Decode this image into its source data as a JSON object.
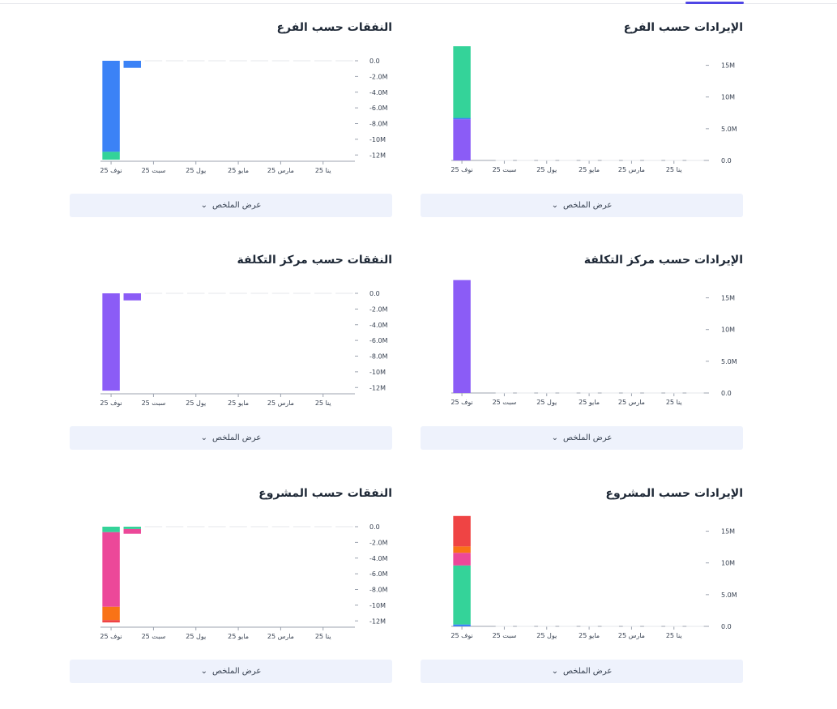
{
  "summary_label": "عرض الملخص",
  "colors": {
    "blue": "#3b82f6",
    "green": "#34d399",
    "purple": "#8b5cf6",
    "pink": "#ec4899",
    "orange": "#f97316",
    "red": "#ef4444",
    "accent": "#4f46e5"
  },
  "chart_data": [
    {
      "id": "revenue-branch",
      "type": "bar",
      "stacked": true,
      "title": "الإيرادات حسب الفرع",
      "categories": [
        "نوف 25",
        "سبت 25",
        "يول 25",
        "مايو 25",
        "مارس 25",
        "ينا 25"
      ],
      "y_ticks": [
        "0.0",
        "5.0M",
        "10M",
        "15M"
      ],
      "ylim": [
        0,
        17500000
      ],
      "x_axis": "reversed",
      "series": [
        {
          "color": "#8b5cf6",
          "values": [
            6500000,
            0,
            0,
            0,
            0,
            0
          ]
        },
        {
          "color": "#3b82f6",
          "values": [
            200000,
            0,
            0,
            0,
            0,
            0
          ]
        },
        {
          "color": "#34d399",
          "values": [
            11300000,
            0,
            0,
            0,
            0,
            0
          ]
        }
      ]
    },
    {
      "id": "expenses-branch",
      "type": "bar",
      "stacked": true,
      "title": "النفقات حسب الفرع",
      "categories": [
        "نوف 25",
        "سبت 25",
        "يول 25",
        "مايو 25",
        "مارس 25",
        "ينا 25"
      ],
      "y_ticks": [
        "0.0",
        "-2.0M",
        "-4.0M",
        "-6.0M",
        "-8.0M",
        "-10M",
        "-12M"
      ],
      "ylim": [
        -12800000,
        0
      ],
      "x_axis": "reversed",
      "series": [
        {
          "color": "#3b82f6",
          "values": [
            -11600000,
            -900000,
            0,
            0,
            0,
            0
          ]
        },
        {
          "color": "#34d399",
          "values": [
            -1000000,
            0,
            0,
            0,
            0,
            0
          ]
        }
      ]
    },
    {
      "id": "revenue-costcenter",
      "type": "bar",
      "stacked": true,
      "title": "الإيرادات حسب مركز التكلفة",
      "categories": [
        "نوف 25",
        "سبت 25",
        "يول 25",
        "مايو 25",
        "مارس 25",
        "ينا 25"
      ],
      "y_ticks": [
        "0.0",
        "5.0M",
        "10M",
        "15M"
      ],
      "ylim": [
        0,
        17500000
      ],
      "x_axis": "reversed",
      "series": [
        {
          "color": "#8b5cf6",
          "values": [
            17800000,
            0,
            0,
            0,
            0,
            0
          ]
        }
      ]
    },
    {
      "id": "expenses-costcenter",
      "type": "bar",
      "stacked": true,
      "title": "النفقات حسب مركز التكلفة",
      "categories": [
        "نوف 25",
        "سبت 25",
        "يول 25",
        "مايو 25",
        "مارس 25",
        "ينا 25"
      ],
      "y_ticks": [
        "0.0",
        "-2.0M",
        "-4.0M",
        "-6.0M",
        "-8.0M",
        "-10M",
        "-12M"
      ],
      "ylim": [
        -12800000,
        0
      ],
      "x_axis": "reversed",
      "series": [
        {
          "color": "#8b5cf6",
          "values": [
            -12400000,
            -900000,
            0,
            0,
            0,
            0
          ]
        }
      ]
    },
    {
      "id": "revenue-project",
      "type": "bar",
      "stacked": true,
      "title": "الإيرادات حسب المشروع",
      "categories": [
        "نوف 25",
        "سبت 25",
        "يول 25",
        "مايو 25",
        "مارس 25",
        "ينا 25"
      ],
      "y_ticks": [
        "0.0",
        "5.0M",
        "10M",
        "15M"
      ],
      "ylim": [
        0,
        17500000
      ],
      "x_axis": "reversed",
      "series": [
        {
          "color": "#3b82f6",
          "values": [
            300000,
            0,
            0,
            0,
            0,
            0
          ]
        },
        {
          "color": "#34d399",
          "values": [
            9300000,
            0,
            0,
            0,
            0,
            0
          ]
        },
        {
          "color": "#ec4899",
          "values": [
            2000000,
            0,
            0,
            0,
            0,
            0
          ]
        },
        {
          "color": "#f97316",
          "values": [
            1000000,
            0,
            0,
            0,
            0,
            0
          ]
        },
        {
          "color": "#ef4444",
          "values": [
            4800000,
            0,
            0,
            0,
            0,
            0
          ]
        }
      ]
    },
    {
      "id": "expenses-project",
      "type": "bar",
      "stacked": true,
      "title": "النفقات حسب المشروع",
      "categories": [
        "نوف 25",
        "سبت 25",
        "يول 25",
        "مايو 25",
        "مارس 25",
        "ينا 25"
      ],
      "y_ticks": [
        "0.0",
        "-2.0M",
        "-4.0M",
        "-6.0M",
        "-8.0M",
        "-10M",
        "-12M"
      ],
      "ylim": [
        -12800000,
        0
      ],
      "x_axis": "reversed",
      "series": [
        {
          "color": "#34d399",
          "values": [
            -700000,
            -300000,
            0,
            0,
            0,
            0
          ]
        },
        {
          "color": "#ec4899",
          "values": [
            -9500000,
            -600000,
            0,
            0,
            0,
            0
          ]
        },
        {
          "color": "#f97316",
          "values": [
            -1700000,
            0,
            0,
            0,
            0,
            0
          ]
        },
        {
          "color": "#ef4444",
          "values": [
            -300000,
            0,
            0,
            0,
            0,
            0
          ]
        }
      ]
    }
  ]
}
